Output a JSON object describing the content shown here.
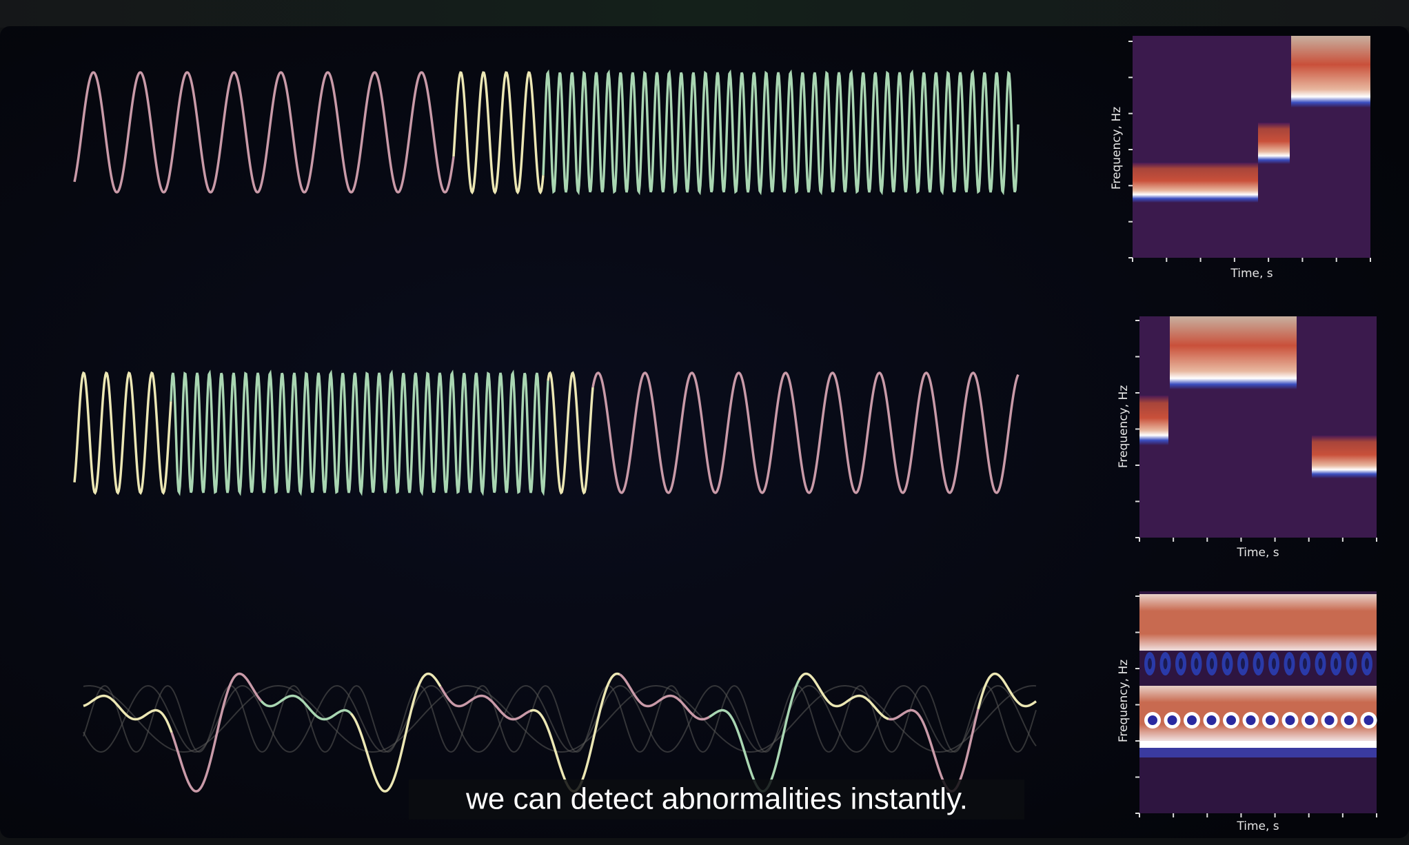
{
  "subtitle": "we can detect abnormalities instantly.",
  "panels": [
    {
      "y_label": "Frequency, Hz",
      "x_label": "Time, s"
    },
    {
      "y_label": "Frequency, Hz",
      "x_label": "Time, s"
    },
    {
      "y_label": "Frequency, Hz",
      "x_label": "Time, s"
    }
  ]
}
